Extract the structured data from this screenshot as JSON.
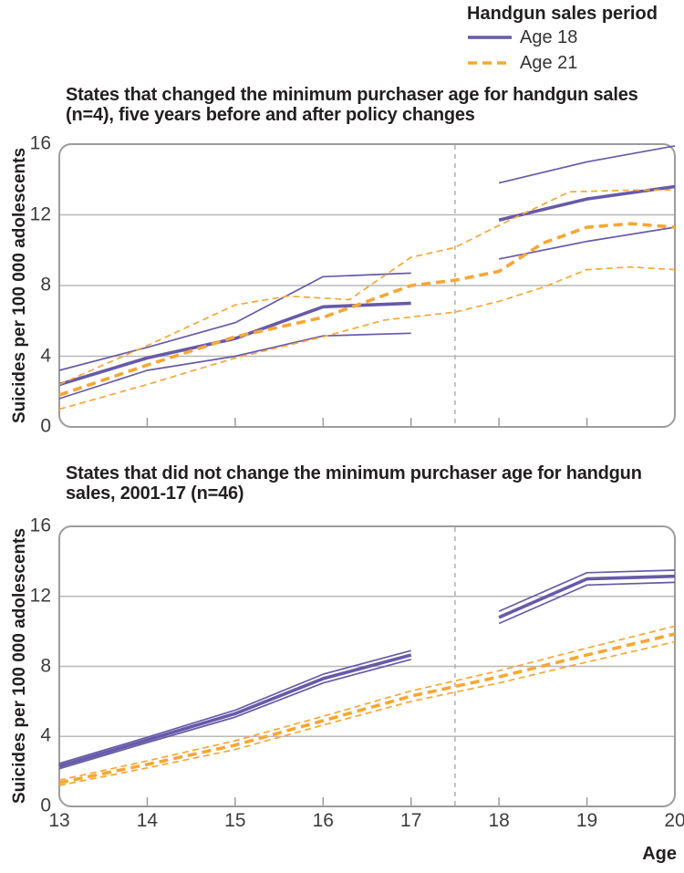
{
  "legend": {
    "title": "Handgun sales period",
    "items": [
      {
        "label": "Age 18",
        "series": "age18",
        "line_style": "solid"
      },
      {
        "label": "Age 21",
        "series": "age21",
        "line_style": "dashed"
      }
    ]
  },
  "colors": {
    "age18": "#675AA8",
    "age21": "#F7A733",
    "grid": "#b8b8b8",
    "frame": "#9c9c9c",
    "refline": "#b5b5b5",
    "title_text": "#231f20",
    "tick_text": "#3d3d3d"
  },
  "axis": {
    "x_label": "Age",
    "x_min": 13,
    "x_max": 20,
    "x_ticks": [
      13,
      14,
      15,
      16,
      17,
      18,
      19,
      20
    ],
    "y_min": 0,
    "y_max": 16,
    "y_ticks": [
      0,
      4,
      8,
      12,
      16
    ],
    "y_label": "Suicides per 100 000 adolescents",
    "reference_line_x": 17.5,
    "grid": true
  },
  "chart_data": [
    {
      "type": "line",
      "title": "States that changed the minimum purchaser age for handgun sales (n=4), five years before and after policy changes",
      "xlabel": "Age",
      "ylabel": "Suicides per 100 000 adolescents",
      "ylim": [
        0,
        16
      ],
      "series": [
        {
          "name": "age18-before-ci-upper",
          "group": "age18",
          "role": "ci",
          "points": [
            [
              13,
              3.2
            ],
            [
              14,
              4.5
            ],
            [
              15,
              5.9
            ],
            [
              16,
              8.5
            ],
            [
              17,
              8.7
            ]
          ]
        },
        {
          "name": "age18-before-mean",
          "group": "age18",
          "role": "mean",
          "points": [
            [
              13,
              2.4
            ],
            [
              14,
              3.9
            ],
            [
              15,
              5.0
            ],
            [
              16,
              6.8
            ],
            [
              17,
              7.0
            ]
          ]
        },
        {
          "name": "age18-before-ci-lower",
          "group": "age18",
          "role": "ci",
          "points": [
            [
              13,
              1.6
            ],
            [
              14,
              3.2
            ],
            [
              15,
              4.0
            ],
            [
              16,
              5.15
            ],
            [
              17,
              5.3
            ]
          ]
        },
        {
          "name": "age18-after-ci-upper",
          "group": "age18",
          "role": "ci",
          "points": [
            [
              18,
              13.8
            ],
            [
              19,
              15.0
            ],
            [
              20,
              15.9
            ]
          ]
        },
        {
          "name": "age18-after-mean",
          "group": "age18",
          "role": "mean",
          "points": [
            [
              18,
              11.7
            ],
            [
              19,
              12.9
            ],
            [
              20,
              13.6
            ]
          ]
        },
        {
          "name": "age18-after-ci-lower",
          "group": "age18",
          "role": "ci",
          "points": [
            [
              18,
              9.5
            ],
            [
              19,
              10.5
            ],
            [
              20,
              11.3
            ]
          ]
        },
        {
          "name": "age21-ci-upper",
          "group": "age21",
          "role": "ci",
          "points": [
            [
              13,
              2.4
            ],
            [
              14,
              4.6
            ],
            [
              15,
              6.9
            ],
            [
              15.6,
              7.4
            ],
            [
              16.3,
              7.2
            ],
            [
              17,
              9.6
            ],
            [
              17.5,
              10.15
            ],
            [
              18,
              11.4
            ],
            [
              18.8,
              13.3
            ],
            [
              19.5,
              13.4
            ],
            [
              20,
              13.4
            ]
          ]
        },
        {
          "name": "age21-mean",
          "group": "age21",
          "role": "mean",
          "points": [
            [
              13,
              1.8
            ],
            [
              14,
              3.5
            ],
            [
              15,
              5.1
            ],
            [
              16,
              6.2
            ],
            [
              17,
              8.0
            ],
            [
              17.5,
              8.3
            ],
            [
              18,
              8.8
            ],
            [
              18.5,
              10.4
            ],
            [
              19,
              11.3
            ],
            [
              19.5,
              11.5
            ],
            [
              20,
              11.3
            ]
          ]
        },
        {
          "name": "age21-ci-lower",
          "group": "age21",
          "role": "ci",
          "points": [
            [
              13,
              1.0
            ],
            [
              14,
              2.4
            ],
            [
              15,
              3.9
            ],
            [
              16,
              5.1
            ],
            [
              16.7,
              6.05
            ],
            [
              17.5,
              6.5
            ],
            [
              18,
              7.1
            ],
            [
              18.5,
              7.9
            ],
            [
              19,
              8.9
            ],
            [
              19.5,
              9.05
            ],
            [
              20,
              8.9
            ]
          ]
        }
      ]
    },
    {
      "type": "line",
      "title": "States that did not change the minimum purchaser age for handgun sales, 2001-17 (n=46)",
      "xlabel": "Age",
      "ylabel": "Suicides per 100 000 adolescents",
      "ylim": [
        0,
        16
      ],
      "series": [
        {
          "name": "age18-before-ci-upper",
          "group": "age18",
          "role": "ci",
          "points": [
            [
              13,
              2.45
            ],
            [
              14,
              3.95
            ],
            [
              15,
              5.5
            ],
            [
              16,
              7.55
            ],
            [
              17,
              8.9
            ]
          ]
        },
        {
          "name": "age18-before-mean",
          "group": "age18",
          "role": "mean",
          "points": [
            [
              13,
              2.3
            ],
            [
              14,
              3.8
            ],
            [
              15,
              5.3
            ],
            [
              16,
              7.3
            ],
            [
              17,
              8.65
            ]
          ]
        },
        {
          "name": "age18-before-ci-lower",
          "group": "age18",
          "role": "ci",
          "points": [
            [
              13,
              2.15
            ],
            [
              14,
              3.65
            ],
            [
              15,
              5.1
            ],
            [
              16,
              7.05
            ],
            [
              17,
              8.4
            ]
          ]
        },
        {
          "name": "age18-after-ci-upper",
          "group": "age18",
          "role": "ci",
          "points": [
            [
              18,
              11.15
            ],
            [
              19,
              13.35
            ],
            [
              20,
              13.5
            ]
          ]
        },
        {
          "name": "age18-after-mean",
          "group": "age18",
          "role": "mean",
          "points": [
            [
              18,
              10.8
            ],
            [
              19,
              13.0
            ],
            [
              20,
              13.15
            ]
          ]
        },
        {
          "name": "age18-after-ci-lower",
          "group": "age18",
          "role": "ci",
          "points": [
            [
              18,
              10.45
            ],
            [
              19,
              12.65
            ],
            [
              20,
              12.8
            ]
          ]
        },
        {
          "name": "age21-ci-upper",
          "group": "age21",
          "role": "ci",
          "points": [
            [
              13,
              1.5
            ],
            [
              14,
              2.6
            ],
            [
              15,
              3.75
            ],
            [
              16,
              5.15
            ],
            [
              17,
              6.6
            ],
            [
              18,
              7.75
            ],
            [
              19,
              9.05
            ],
            [
              20,
              10.3
            ]
          ]
        },
        {
          "name": "age21-mean",
          "group": "age21",
          "role": "mean",
          "points": [
            [
              13,
              1.35
            ],
            [
              14,
              2.4
            ],
            [
              15,
              3.5
            ],
            [
              16,
              4.9
            ],
            [
              17,
              6.3
            ],
            [
              18,
              7.4
            ],
            [
              19,
              8.65
            ],
            [
              20,
              9.85
            ]
          ]
        },
        {
          "name": "age21-ci-lower",
          "group": "age21",
          "role": "ci",
          "points": [
            [
              13,
              1.2
            ],
            [
              14,
              2.2
            ],
            [
              15,
              3.25
            ],
            [
              16,
              4.65
            ],
            [
              17,
              6.0
            ],
            [
              18,
              7.05
            ],
            [
              19,
              8.25
            ],
            [
              20,
              9.4
            ]
          ]
        }
      ]
    }
  ]
}
